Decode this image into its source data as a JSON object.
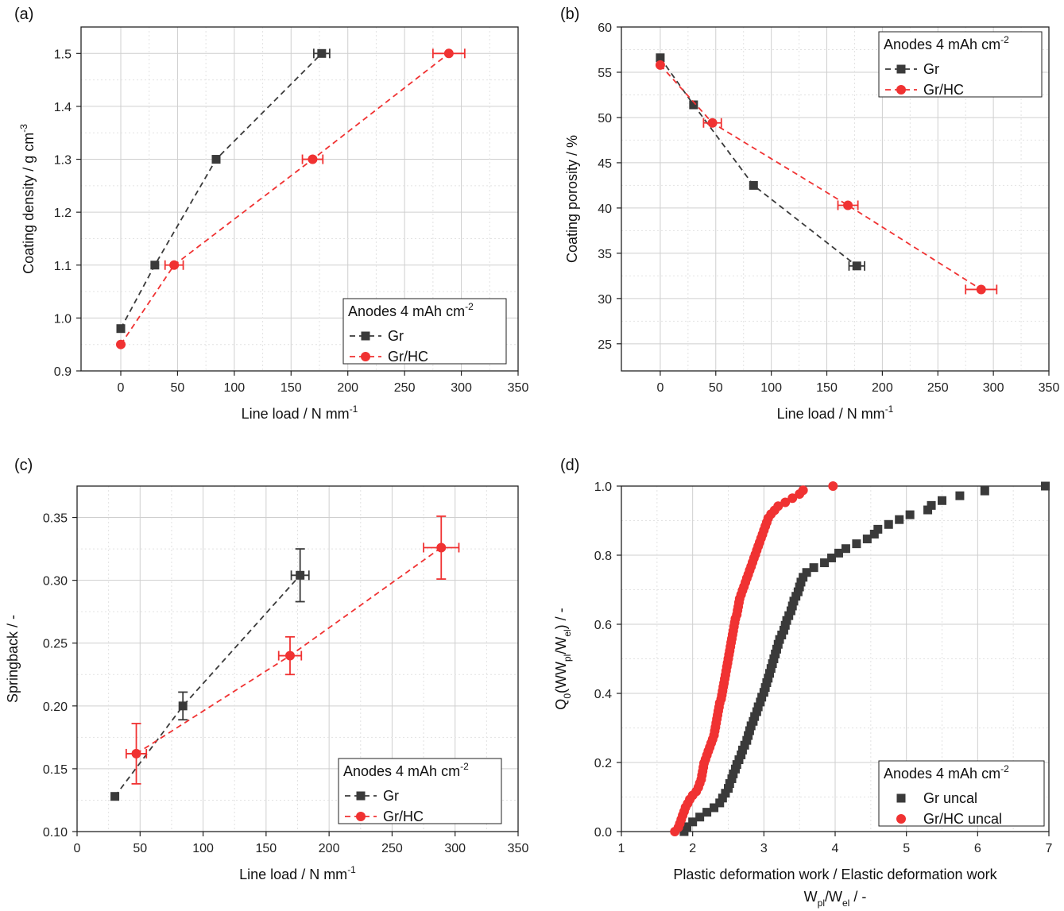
{
  "chart_data": [
    {
      "type": "line",
      "panel_label": "(a)",
      "xlabel": "Line load / N mm",
      "xlabel_sup": "-1",
      "ylabel": "Coating density / g cm",
      "ylabel_sup": "-3",
      "xlim": [
        -35,
        350
      ],
      "ylim": [
        0.9,
        1.55
      ],
      "xticks": [
        0,
        50,
        100,
        150,
        200,
        250,
        300,
        350
      ],
      "yticks": [
        0.9,
        1.0,
        1.1,
        1.2,
        1.3,
        1.4,
        1.5
      ],
      "ytick_decimals": 1,
      "legend_title": "Anodes 4 mAh cm",
      "legend_title_sup": "-2",
      "legend_loc": "bottom-right",
      "series": [
        {
          "name": "Gr",
          "color": "#3a3a3a",
          "marker": "square",
          "dashed": true,
          "x": [
            0,
            30,
            84,
            177
          ],
          "y": [
            0.98,
            1.1,
            1.3,
            1.5
          ],
          "xerr": [
            0,
            0,
            0,
            7
          ],
          "yerr": [
            0,
            0,
            0,
            0
          ]
        },
        {
          "name": "Gr/HC",
          "color": "#f03232",
          "marker": "circle",
          "dashed": true,
          "x": [
            0,
            47,
            169,
            289
          ],
          "y": [
            0.95,
            1.1,
            1.3,
            1.5
          ],
          "xerr": [
            0,
            8,
            9,
            14
          ],
          "yerr": [
            0,
            0,
            0,
            0
          ]
        }
      ]
    },
    {
      "type": "line",
      "panel_label": "(b)",
      "xlabel": "Line load / N mm",
      "xlabel_sup": "-1",
      "ylabel": "Coating porosity / %",
      "ylabel_sup": "",
      "xlim": [
        -35,
        350
      ],
      "ylim": [
        22,
        60
      ],
      "xticks": [
        0,
        50,
        100,
        150,
        200,
        250,
        300,
        350
      ],
      "yticks": [
        25,
        30,
        35,
        40,
        45,
        50,
        55,
        60
      ],
      "ytick_decimals": 0,
      "legend_title": "Anodes 4 mAh cm",
      "legend_title_sup": "-2",
      "legend_loc": "top-right",
      "series": [
        {
          "name": "Gr",
          "color": "#3a3a3a",
          "marker": "square",
          "dashed": true,
          "x": [
            0,
            30,
            84,
            177
          ],
          "y": [
            56.6,
            51.4,
            42.5,
            33.6
          ],
          "xerr": [
            0,
            0,
            0,
            7
          ],
          "yerr": [
            0,
            0,
            0,
            0
          ]
        },
        {
          "name": "Gr/HC",
          "color": "#f03232",
          "marker": "circle",
          "dashed": true,
          "x": [
            0,
            47,
            169,
            289
          ],
          "y": [
            55.8,
            49.4,
            40.3,
            31.0
          ],
          "xerr": [
            0,
            8,
            9,
            14
          ],
          "yerr": [
            0,
            0,
            0,
            0
          ]
        }
      ]
    },
    {
      "type": "line",
      "panel_label": "(c)",
      "xlabel": "Line load / N mm",
      "xlabel_sup": "-1",
      "ylabel": "Springback / -",
      "ylabel_sup": "",
      "xlim": [
        0,
        350
      ],
      "ylim": [
        0.1,
        0.375
      ],
      "xticks": [
        0,
        50,
        100,
        150,
        200,
        250,
        300,
        350
      ],
      "yticks": [
        0.1,
        0.15,
        0.2,
        0.25,
        0.3,
        0.35
      ],
      "ytick_decimals": 2,
      "legend_title": "Anodes 4 mAh cm",
      "legend_title_sup": "-2",
      "legend_loc": "bottom-right",
      "series": [
        {
          "name": "Gr",
          "color": "#3a3a3a",
          "marker": "square",
          "dashed": true,
          "x": [
            30,
            84,
            177
          ],
          "y": [
            0.128,
            0.2,
            0.304
          ],
          "xerr": [
            0,
            0,
            7
          ],
          "yerr": [
            0,
            0.011,
            0.021
          ]
        },
        {
          "name": "Gr/HC",
          "color": "#f03232",
          "marker": "circle",
          "dashed": true,
          "x": [
            47,
            169,
            289
          ],
          "y": [
            0.162,
            0.24,
            0.326
          ],
          "xerr": [
            8,
            9,
            14
          ],
          "yerr": [
            0.024,
            0.015,
            0.025
          ]
        }
      ]
    },
    {
      "type": "scatter",
      "panel_label": "(d)",
      "xlabel": "Plastic deformation work / Elastic deformation work",
      "xlabel2": "W",
      "xlabel2_tail": "/W",
      "ylabel": "Q",
      "ylabel_tail": "(W",
      "xlim": [
        1,
        7
      ],
      "ylim": [
        0,
        1
      ],
      "xticks": [
        1,
        2,
        3,
        4,
        5,
        6,
        7
      ],
      "yticks": [
        0.0,
        0.2,
        0.4,
        0.6,
        0.8,
        1.0
      ],
      "ytick_decimals": 1,
      "legend_title": "Anodes 4 mAh cm",
      "legend_title_sup": "-2",
      "legend_loc": "bottom-right",
      "series": [
        {
          "name": "Gr uncal",
          "color": "#3a3a3a",
          "marker": "square",
          "x": [
            1.88,
            1.92,
            2.0,
            2.1,
            2.2,
            2.3,
            2.38,
            2.42,
            2.46,
            2.5,
            2.52,
            2.55,
            2.57,
            2.6,
            2.62,
            2.65,
            2.68,
            2.7,
            2.73,
            2.76,
            2.78,
            2.8,
            2.82,
            2.85,
            2.87,
            2.9,
            2.92,
            2.95,
            2.97,
            3.0,
            3.02,
            3.04,
            3.06,
            3.08,
            3.1,
            3.12,
            3.14,
            3.16,
            3.18,
            3.2,
            3.22,
            3.25,
            3.28,
            3.3,
            3.32,
            3.35,
            3.38,
            3.4,
            3.42,
            3.45,
            3.48,
            3.5,
            3.52,
            3.55,
            3.6,
            3.7,
            3.85,
            3.95,
            4.05,
            4.15,
            4.3,
            4.45,
            4.55,
            4.6,
            4.75,
            4.9,
            5.05,
            5.3,
            5.35,
            5.5,
            5.75,
            6.1,
            6.95
          ],
          "y": [
            0.0,
            0.014,
            0.028,
            0.042,
            0.056,
            0.069,
            0.083,
            0.097,
            0.111,
            0.125,
            0.139,
            0.153,
            0.167,
            0.181,
            0.194,
            0.208,
            0.222,
            0.236,
            0.25,
            0.264,
            0.278,
            0.292,
            0.306,
            0.319,
            0.333,
            0.347,
            0.361,
            0.375,
            0.389,
            0.403,
            0.417,
            0.431,
            0.444,
            0.458,
            0.472,
            0.486,
            0.5,
            0.514,
            0.528,
            0.542,
            0.556,
            0.569,
            0.583,
            0.597,
            0.611,
            0.625,
            0.639,
            0.653,
            0.667,
            0.681,
            0.694,
            0.708,
            0.722,
            0.736,
            0.75,
            0.764,
            0.778,
            0.792,
            0.806,
            0.819,
            0.833,
            0.847,
            0.861,
            0.875,
            0.889,
            0.903,
            0.917,
            0.931,
            0.944,
            0.958,
            0.972,
            0.986,
            1.0
          ]
        },
        {
          "name": "Gr/HC uncal",
          "color": "#f03232",
          "marker": "circle",
          "x": [
            1.75,
            1.8,
            1.82,
            1.84,
            1.86,
            1.88,
            1.9,
            1.93,
            1.96,
            2.0,
            2.05,
            2.08,
            2.1,
            2.12,
            2.13,
            2.14,
            2.15,
            2.16,
            2.18,
            2.2,
            2.22,
            2.24,
            2.26,
            2.28,
            2.3,
            2.31,
            2.32,
            2.33,
            2.34,
            2.35,
            2.36,
            2.37,
            2.38,
            2.4,
            2.41,
            2.42,
            2.43,
            2.44,
            2.45,
            2.46,
            2.47,
            2.48,
            2.49,
            2.5,
            2.51,
            2.52,
            2.53,
            2.54,
            2.55,
            2.56,
            2.57,
            2.58,
            2.59,
            2.6,
            2.62,
            2.63,
            2.64,
            2.65,
            2.66,
            2.68,
            2.7,
            2.72,
            2.74,
            2.76,
            2.78,
            2.8,
            2.82,
            2.84,
            2.86,
            2.88,
            2.9,
            2.92,
            2.94,
            2.96,
            2.98,
            3.0,
            3.02,
            3.04,
            3.06,
            3.1,
            3.15,
            3.2,
            3.3,
            3.4,
            3.5,
            3.55,
            3.97
          ],
          "y": [
            0.0,
            0.012,
            0.023,
            0.035,
            0.047,
            0.058,
            0.07,
            0.081,
            0.093,
            0.105,
            0.116,
            0.128,
            0.14,
            0.151,
            0.163,
            0.174,
            0.186,
            0.198,
            0.209,
            0.221,
            0.233,
            0.244,
            0.256,
            0.267,
            0.279,
            0.291,
            0.302,
            0.314,
            0.326,
            0.337,
            0.349,
            0.36,
            0.372,
            0.384,
            0.395,
            0.407,
            0.419,
            0.43,
            0.442,
            0.453,
            0.465,
            0.477,
            0.488,
            0.5,
            0.512,
            0.523,
            0.535,
            0.547,
            0.558,
            0.57,
            0.581,
            0.593,
            0.605,
            0.616,
            0.628,
            0.64,
            0.651,
            0.663,
            0.674,
            0.686,
            0.698,
            0.709,
            0.721,
            0.733,
            0.744,
            0.756,
            0.767,
            0.779,
            0.791,
            0.802,
            0.814,
            0.826,
            0.837,
            0.849,
            0.86,
            0.872,
            0.884,
            0.895,
            0.907,
            0.919,
            0.93,
            0.942,
            0.953,
            0.965,
            0.977,
            0.988,
            1.0
          ]
        }
      ]
    }
  ]
}
